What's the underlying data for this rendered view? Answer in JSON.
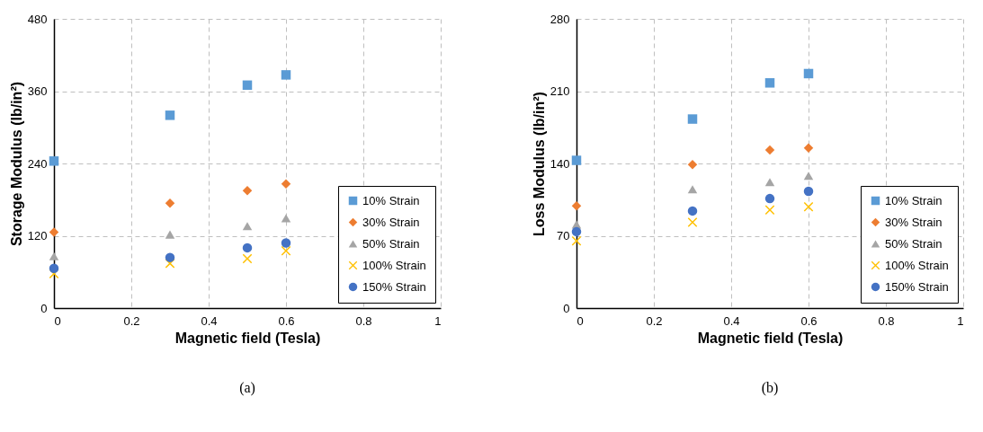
{
  "chart_data": [
    {
      "type": "scatter",
      "xlabel": "Magnetic field (Tesla)",
      "ylabel": "Storage Modulus (lb/in²)",
      "annotations": [
        "(a)"
      ],
      "x": [
        0,
        0.3,
        0.5,
        0.6
      ],
      "xlim": [
        0,
        1
      ],
      "xticks": [
        0,
        0.2,
        0.4,
        0.6,
        0.8,
        1
      ],
      "ylim": [
        0,
        480
      ],
      "yticks": [
        0,
        120,
        240,
        360,
        480
      ],
      "grid": true,
      "legend": "bottom right",
      "series": [
        {
          "name": "10% Strain",
          "color": "#5b9bd5",
          "marker": "square",
          "values": [
            244,
            320,
            370,
            387
          ]
        },
        {
          "name": "30% Strain",
          "color": "#ed7d31",
          "marker": "diamond",
          "values": [
            126,
            174,
            195,
            206
          ]
        },
        {
          "name": "50% Strain",
          "color": "#a5a5a5",
          "marker": "triangle",
          "values": [
            86,
            122,
            136,
            149
          ]
        },
        {
          "name": "100% Strain",
          "color": "#ffc000",
          "marker": "cross",
          "values": [
            57,
            74,
            82,
            95
          ]
        },
        {
          "name": "150% Strain",
          "color": "#4472c4",
          "marker": "circle",
          "values": [
            66,
            84,
            100,
            108
          ]
        }
      ]
    },
    {
      "type": "scatter",
      "xlabel": "Magnetic field (Tesla)",
      "ylabel": "Loss Modulus (lb/in²)",
      "annotations": [
        "(b)"
      ],
      "x": [
        0,
        0.3,
        0.5,
        0.6
      ],
      "xlim": [
        0,
        1
      ],
      "xticks": [
        0,
        0.2,
        0.4,
        0.6,
        0.8,
        1
      ],
      "ylim": [
        0,
        280
      ],
      "yticks": [
        0,
        70,
        140,
        210,
        280
      ],
      "grid": true,
      "legend": "bottom right",
      "series": [
        {
          "name": "10% Strain",
          "color": "#5b9bd5",
          "marker": "square",
          "values": [
            143,
            183,
            218,
            227
          ]
        },
        {
          "name": "30% Strain",
          "color": "#ed7d31",
          "marker": "diamond",
          "values": [
            99,
            139,
            153,
            155
          ]
        },
        {
          "name": "50% Strain",
          "color": "#a5a5a5",
          "marker": "triangle",
          "values": [
            81,
            115,
            122,
            128
          ]
        },
        {
          "name": "100% Strain",
          "color": "#ffc000",
          "marker": "cross",
          "values": [
            65,
            83,
            95,
            98
          ]
        },
        {
          "name": "150% Strain",
          "color": "#4472c4",
          "marker": "circle",
          "values": [
            74,
            94,
            106,
            113
          ]
        }
      ]
    }
  ]
}
